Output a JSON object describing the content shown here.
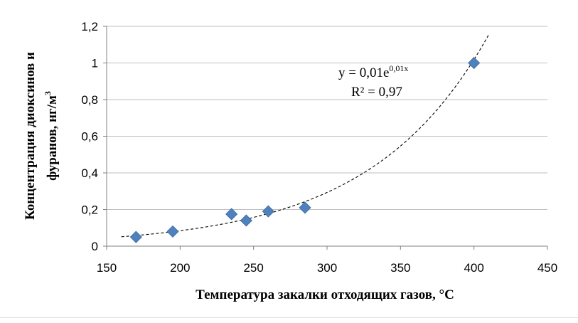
{
  "chart_data": {
    "type": "scatter",
    "title": "",
    "xlabel": "Температура закалки отходящих газов, °C",
    "ylabel": "Концентрация диоксинов и фуранов, нг/м³",
    "ylabel_lines": [
      "Концентрация диоксинов и",
      "фуранов, нг/м"
    ],
    "ylabel_sup": "3",
    "xlim": [
      150,
      450
    ],
    "ylim": [
      0,
      1.2
    ],
    "x_ticks": [
      "150",
      "200",
      "250",
      "300",
      "350",
      "400",
      "450"
    ],
    "y_ticks": [
      "0",
      "0,2",
      "0,4",
      "0,6",
      "0,8",
      "1",
      "1,2"
    ],
    "grid": "horizontal",
    "series": [
      {
        "x": [
          170,
          195,
          235,
          245,
          260,
          285,
          400
        ],
        "y": [
          0.05,
          0.08,
          0.175,
          0.14,
          0.19,
          0.21,
          1.0
        ],
        "color": "#4f81bd",
        "marker": "diamond"
      }
    ],
    "trendline": {
      "type": "exponential",
      "x_range": [
        160,
        410
      ],
      "color": "#000000",
      "equation_main": "y = 0,01e",
      "equation_exp": "0,01x",
      "r_squared": "R² = 0,97"
    }
  }
}
